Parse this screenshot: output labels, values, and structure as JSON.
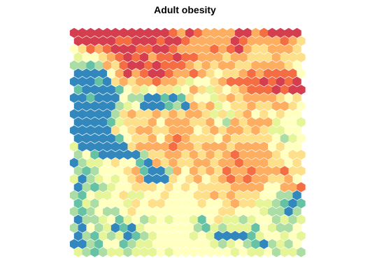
{
  "chart_data": {
    "type": "heatmap",
    "subtype": "hexagonal-som-heatmap",
    "title": "Adult obesity",
    "xlabel": "",
    "ylabel": "",
    "grid": false,
    "legend": "none",
    "grid_cols": 28,
    "grid_rows": 28,
    "palette": [
      "#3288bd",
      "#66c2a5",
      "#abdda4",
      "#e6f598",
      "#ffffbf",
      "#fee08b",
      "#fdae61",
      "#f46d43",
      "#d53e4f"
    ],
    "values": [
      [
        8,
        8,
        8,
        8,
        8,
        8,
        8,
        8,
        8,
        8,
        8,
        8,
        7,
        6,
        8,
        7,
        6,
        6,
        6,
        6,
        8,
        8,
        6,
        7,
        8,
        8,
        8,
        8
      ],
      [
        8,
        8,
        8,
        8,
        8,
        7,
        7,
        8,
        8,
        8,
        7,
        8,
        8,
        7,
        6,
        6,
        6,
        6,
        6,
        8,
        7,
        6,
        6,
        6,
        6,
        7,
        6,
        5
      ],
      [
        4,
        5,
        7,
        6,
        7,
        8,
        8,
        8,
        7,
        7,
        8,
        8,
        7,
        6,
        6,
        6,
        6,
        7,
        6,
        7,
        8,
        6,
        5,
        5,
        6,
        6,
        6,
        5
      ],
      [
        3,
        4,
        4,
        5,
        6,
        7,
        8,
        7,
        8,
        6,
        7,
        7,
        8,
        7,
        7,
        6,
        6,
        6,
        5,
        6,
        6,
        5,
        5,
        5,
        6,
        5,
        5,
        5
      ],
      [
        2,
        2,
        1,
        2,
        6,
        5,
        7,
        8,
        8,
        7,
        8,
        7,
        7,
        7,
        6,
        5,
        6,
        5,
        6,
        6,
        5,
        5,
        6,
        6,
        6,
        6,
        5,
        4
      ],
      [
        0,
        0,
        0,
        0,
        4,
        6,
        8,
        6,
        7,
        8,
        8,
        7,
        6,
        6,
        7,
        6,
        5,
        4,
        5,
        5,
        6,
        7,
        6,
        7,
        7,
        7,
        7,
        4
      ],
      [
        0,
        0,
        0,
        1,
        0,
        5,
        6,
        5,
        6,
        6,
        7,
        6,
        6,
        5,
        3,
        4,
        4,
        5,
        6,
        7,
        7,
        7,
        7,
        8,
        7,
        8,
        7,
        8
      ],
      [
        1,
        0,
        0,
        0,
        0,
        1,
        4,
        5,
        3,
        4,
        5,
        5,
        3,
        4,
        6,
        5,
        3,
        5,
        4,
        5,
        6,
        7,
        7,
        7,
        8,
        7,
        8,
        8
      ],
      [
        0,
        0,
        1,
        0,
        0,
        0,
        4,
        2,
        2,
        0,
        0,
        1,
        0,
        1,
        5,
        4,
        4,
        3,
        5,
        6,
        5,
        6,
        6,
        6,
        6,
        5,
        4,
        5
      ],
      [
        0,
        0,
        0,
        0,
        0,
        2,
        3,
        4,
        0,
        0,
        0,
        1,
        2,
        0,
        6,
        5,
        6,
        3,
        4,
        5,
        5,
        6,
        5,
        5,
        6,
        6,
        5,
        4
      ],
      [
        0,
        0,
        0,
        0,
        0,
        2,
        5,
        6,
        5,
        5,
        6,
        5,
        6,
        5,
        6,
        6,
        5,
        3,
        5,
        3,
        5,
        6,
        4,
        5,
        4,
        5,
        4,
        4
      ],
      [
        0,
        0,
        0,
        0,
        1,
        3,
        5,
        5,
        5,
        6,
        4,
        6,
        6,
        6,
        5,
        5,
        6,
        4,
        2,
        6,
        5,
        6,
        6,
        6,
        3,
        4,
        4,
        3
      ],
      [
        0,
        0,
        0,
        0,
        0,
        5,
        4,
        5,
        6,
        6,
        5,
        5,
        6,
        6,
        6,
        4,
        5,
        6,
        5,
        6,
        6,
        5,
        6,
        5,
        3,
        3,
        4,
        4
      ],
      [
        0,
        0,
        0,
        0,
        0,
        1,
        4,
        5,
        5,
        6,
        4,
        6,
        7,
        6,
        5,
        5,
        5,
        4,
        6,
        5,
        5,
        5,
        5,
        5,
        4,
        2,
        3,
        4
      ],
      [
        3,
        0,
        0,
        0,
        0,
        0,
        0,
        5,
        6,
        6,
        6,
        6,
        7,
        6,
        6,
        5,
        6,
        6,
        6,
        5,
        6,
        6,
        6,
        6,
        4,
        5,
        4,
        4
      ],
      [
        2,
        4,
        1,
        0,
        0,
        0,
        0,
        0,
        2,
        5,
        5,
        6,
        6,
        5,
        6,
        5,
        6,
        5,
        6,
        7,
        6,
        6,
        6,
        6,
        5,
        4,
        5,
        5
      ],
      [
        0,
        2,
        3,
        3,
        4,
        5,
        4,
        4,
        1,
        0,
        6,
        5,
        6,
        5,
        5,
        6,
        6,
        5,
        6,
        6,
        7,
        6,
        6,
        6,
        5,
        5,
        4,
        5
      ],
      [
        2,
        1,
        2,
        4,
        4,
        4,
        5,
        6,
        1,
        0,
        0,
        2,
        6,
        4,
        6,
        5,
        6,
        5,
        7,
        6,
        6,
        7,
        6,
        6,
        6,
        7,
        5,
        5
      ],
      [
        3,
        0,
        2,
        3,
        4,
        3,
        4,
        5,
        6,
        0,
        0,
        0,
        5,
        4,
        5,
        6,
        4,
        5,
        6,
        7,
        6,
        7,
        6,
        6,
        5,
        5,
        6,
        4
      ],
      [
        0,
        2,
        1,
        2,
        3,
        4,
        4,
        5,
        5,
        5,
        4,
        5,
        4,
        5,
        4,
        5,
        5,
        5,
        5,
        6,
        6,
        6,
        6,
        4,
        4,
        6,
        6,
        7
      ],
      [
        2,
        1,
        4,
        3,
        3,
        4,
        5,
        3,
        3,
        4,
        4,
        5,
        4,
        4,
        4,
        5,
        5,
        6,
        5,
        6,
        5,
        5,
        5,
        4,
        4,
        2,
        2,
        0
      ],
      [
        1,
        3,
        2,
        4,
        4,
        4,
        3,
        5,
        4,
        5,
        5,
        4,
        4,
        4,
        4,
        5,
        4,
        4,
        5,
        6,
        5,
        5,
        3,
        3,
        2,
        1,
        0,
        1
      ],
      [
        2,
        1,
        2,
        4,
        2,
        2,
        4,
        5,
        4,
        4,
        4,
        4,
        4,
        4,
        4,
        4,
        4,
        4,
        5,
        5,
        4,
        4,
        4,
        3,
        2,
        2,
        0,
        2
      ],
      [
        0,
        2,
        2,
        3,
        4,
        1,
        3,
        4,
        2,
        3,
        4,
        3,
        4,
        4,
        3,
        1,
        4,
        5,
        3,
        3,
        2,
        3,
        4,
        4,
        2,
        3,
        2,
        3
      ],
      [
        2,
        0,
        4,
        2,
        3,
        0,
        1,
        0,
        3,
        4,
        4,
        4,
        4,
        4,
        4,
        2,
        1,
        3,
        2,
        3,
        3,
        3,
        1,
        4,
        3,
        2,
        2,
        4
      ],
      [
        0,
        2,
        1,
        3,
        2,
        3,
        0,
        1,
        2,
        3,
        4,
        4,
        4,
        4,
        3,
        4,
        3,
        0,
        0,
        0,
        0,
        1,
        3,
        4,
        4,
        3,
        4,
        3
      ],
      [
        0,
        0,
        2,
        1,
        4,
        4,
        1,
        2,
        3,
        3,
        4,
        4,
        4,
        4,
        4,
        4,
        4,
        3,
        2,
        3,
        4,
        2,
        1,
        0,
        2,
        3,
        2,
        4
      ],
      [
        3,
        2,
        1,
        2,
        3,
        3,
        2,
        3,
        3,
        3,
        4,
        3,
        4,
        4,
        4,
        4,
        4,
        4,
        4,
        3,
        4,
        3,
        3,
        4,
        2,
        3,
        3,
        2
      ]
    ]
  }
}
